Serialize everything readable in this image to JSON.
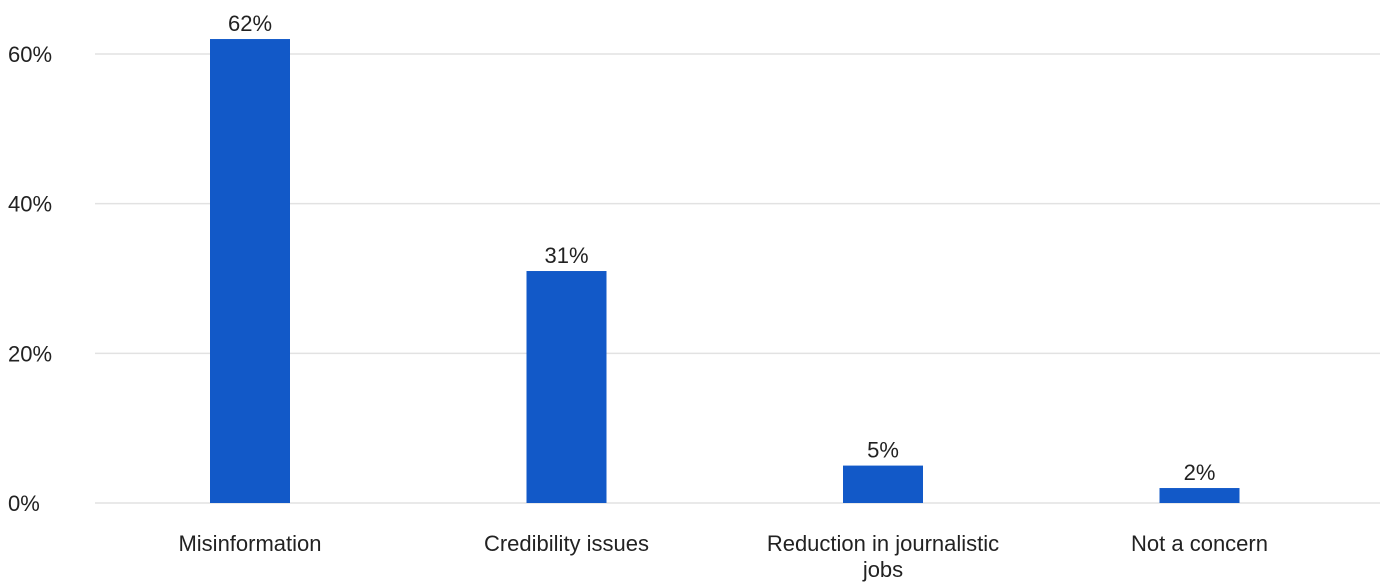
{
  "chart_data": {
    "type": "bar",
    "categories": [
      "Misinformation",
      "Credibility issues",
      "Reduction in journalistic jobs",
      "Not a concern"
    ],
    "category_lines": [
      [
        "Misinformation"
      ],
      [
        "Credibility issues"
      ],
      [
        "Reduction in journalistic",
        "jobs"
      ],
      [
        "Not a concern"
      ]
    ],
    "values": [
      62,
      31,
      5,
      2
    ],
    "data_labels": [
      "62%",
      "31%",
      "5%",
      "2%"
    ],
    "ylim": [
      0,
      60
    ],
    "yticks": [
      0,
      20,
      40,
      60
    ],
    "ytick_labels": [
      "0%",
      "20%",
      "40%",
      "60%"
    ],
    "grid": true,
    "legend": "none",
    "colors": {
      "bar": "#1259c8",
      "grid": "#e2e2e2",
      "text": "#222222"
    }
  }
}
